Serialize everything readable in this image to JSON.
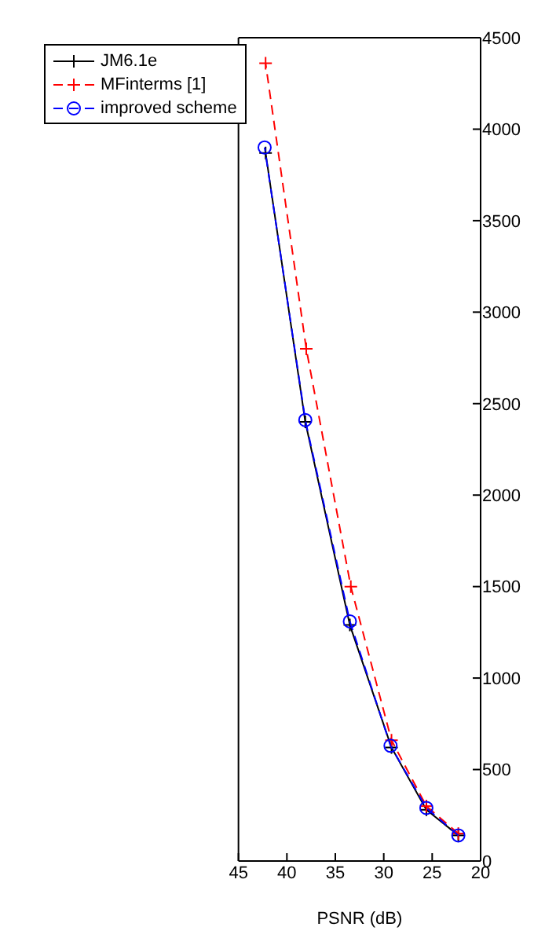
{
  "chart_data": {
    "type": "line",
    "xlabel": "PSNR (dB)",
    "xlim": [
      45,
      20
    ],
    "xticks": [
      45,
      40,
      35,
      30,
      25,
      20
    ],
    "ylim": [
      0,
      4500
    ],
    "yticks": [
      0,
      500,
      1000,
      1500,
      2000,
      2500,
      3000,
      3500,
      4000,
      4500
    ],
    "legend": "top left",
    "series": [
      {
        "name": "JM6.1e",
        "color": "#000000",
        "marker": "cross",
        "line_style": "solid",
        "x": [
          22.3,
          25.6,
          29.2,
          33.5,
          38.1,
          42.2
        ],
        "values": [
          140,
          280,
          620,
          1290,
          2400,
          3870
        ]
      },
      {
        "name": "MFinterms [1]",
        "color": "#ff0000",
        "marker": "cross",
        "line_style": "dashed",
        "x": [
          22.3,
          25.6,
          29.2,
          33.4,
          38.0,
          42.2
        ],
        "values": [
          150,
          300,
          660,
          1500,
          2800,
          4360
        ]
      },
      {
        "name": "improved scheme",
        "color": "#0000ff",
        "marker": "circle",
        "line_style": "dashed",
        "x": [
          22.3,
          25.6,
          29.3,
          33.5,
          38.1,
          42.3
        ],
        "values": [
          140,
          290,
          630,
          1310,
          2410,
          3900
        ]
      }
    ]
  }
}
